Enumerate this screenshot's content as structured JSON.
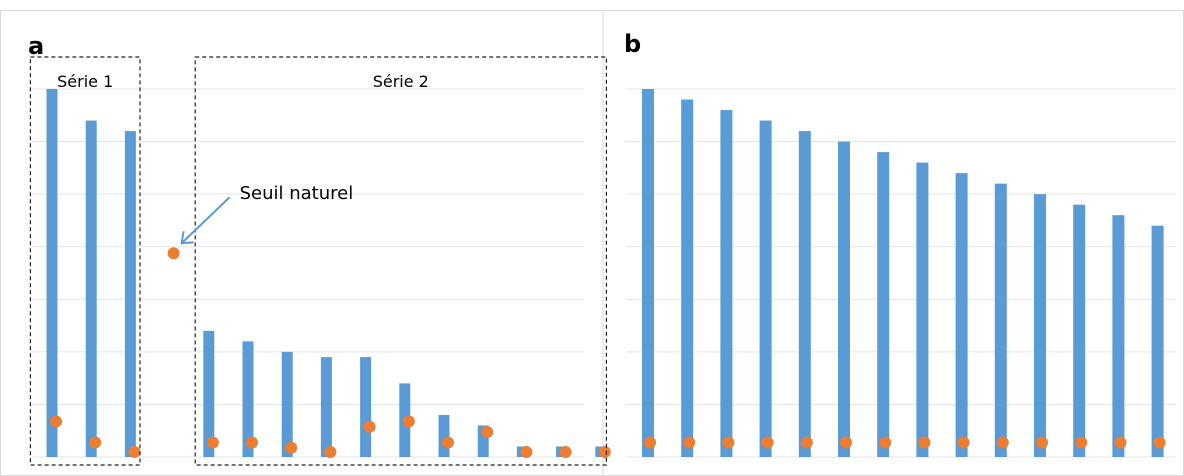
{
  "chart_data": [
    {
      "panel": "a",
      "type": "bar",
      "ylim": [
        0,
        7
      ],
      "grid": true,
      "series": [
        {
          "role": "bars",
          "color": "#5B9BD5",
          "values": [
            7.0,
            6.4,
            6.2,
            0.0,
            2.4,
            2.2,
            2.0,
            1.9,
            1.9,
            1.4,
            0.8,
            0.6,
            0.2,
            0.2,
            0.2
          ]
        },
        {
          "role": "points",
          "color": "#ED7D31",
          "values": [
            0.6,
            0.2,
            0.0,
            3.8,
            0.2,
            0.2,
            0.1,
            0.0,
            0.5,
            0.6,
            0.2,
            0.4,
            0.0,
            0.0,
            0.0
          ]
        }
      ],
      "groups": [
        {
          "label": "Série 1",
          "from": 0,
          "to": 2
        },
        {
          "label": "Série 2",
          "from": 4,
          "to": 14
        }
      ],
      "annotation": {
        "text": "Seuil naturel",
        "target_index": 3
      }
    },
    {
      "panel": "b",
      "type": "bar",
      "ylim": [
        0,
        7
      ],
      "grid": true,
      "series": [
        {
          "role": "bars",
          "color": "#5B9BD5",
          "values": [
            7.0,
            6.8,
            6.6,
            6.4,
            6.2,
            6.0,
            5.8,
            5.6,
            5.4,
            5.2,
            5.0,
            4.8,
            4.6,
            4.4
          ]
        },
        {
          "role": "points",
          "color": "#ED7D31",
          "values": [
            0.2,
            0.2,
            0.2,
            0.2,
            0.2,
            0.2,
            0.2,
            0.2,
            0.2,
            0.2,
            0.2,
            0.2,
            0.2,
            0.2
          ]
        }
      ]
    }
  ]
}
